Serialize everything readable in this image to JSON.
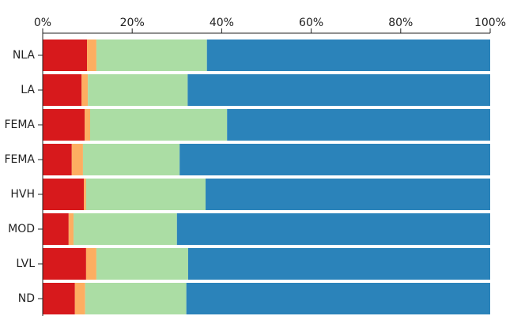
{
  "chart_data": {
    "type": "stacked-barh",
    "categories": [
      "NLA",
      "LA",
      "FEMA",
      "FEMA",
      "HVH",
      "MOD",
      "LVL",
      "ND"
    ],
    "series": [
      {
        "color": "#d7191c",
        "values": [
          9.9,
          8.7,
          9.4,
          6.5,
          9.2,
          5.8,
          9.7,
          7.2
        ]
      },
      {
        "color": "#fdae61",
        "values": [
          2.1,
          1.4,
          1.2,
          2.5,
          0.5,
          1.1,
          2.3,
          2.3
        ]
      },
      {
        "color": "#abdda4",
        "values": [
          24.7,
          22.3,
          30.6,
          21.6,
          26.7,
          23.1,
          20.5,
          22.6
        ]
      },
      {
        "color": "#2b83ba",
        "values": [
          63.3,
          67.6,
          58.8,
          69.4,
          63.6,
          70.0,
          67.5,
          67.9
        ]
      }
    ],
    "xlim": [
      0,
      100
    ],
    "xticks": [
      {
        "value": 0,
        "label": "0%"
      },
      {
        "value": 20,
        "label": "20%"
      },
      {
        "value": 40,
        "label": "40%"
      },
      {
        "value": 60,
        "label": "60%"
      },
      {
        "value": 80,
        "label": "80%"
      },
      {
        "value": 100,
        "label": "100%"
      }
    ]
  }
}
